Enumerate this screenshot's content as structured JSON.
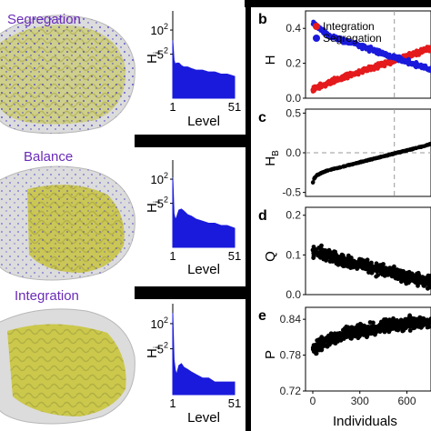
{
  "colors": {
    "blue": "#1a1adc",
    "red": "#e41a1c",
    "title": "#6a2bb8",
    "brain_fill": "#d8d8d8",
    "brain_yellow": "#c9c84a",
    "points_black": "#000000"
  },
  "rows": [
    {
      "title": "Segregation"
    },
    {
      "title": "Balance"
    },
    {
      "title": "Integration"
    }
  ],
  "chart_data": [
    {
      "id": "hist-segregation",
      "type": "area",
      "ylabel": "H",
      "ylabel_sub": "i",
      "xlabel": "Level",
      "xticks": [
        "1",
        "51"
      ],
      "yticks": [
        {
          "base": "10",
          "exp": "2"
        },
        {
          "base": "5",
          "exp": "2"
        }
      ],
      "x": [
        1,
        2,
        3,
        4,
        6,
        8,
        10,
        13,
        16,
        20,
        25,
        30,
        35,
        40,
        45,
        51
      ],
      "y": [
        55,
        18,
        14,
        15,
        15,
        13,
        12,
        12,
        11,
        10,
        10,
        9,
        9,
        8,
        8,
        7
      ]
    },
    {
      "id": "hist-balance",
      "type": "area",
      "ylabel": "H",
      "ylabel_sub": "i",
      "xlabel": "Level",
      "xticks": [
        "1",
        "51"
      ],
      "yticks": [
        {
          "base": "10",
          "exp": "2"
        },
        {
          "base": "5",
          "exp": "2"
        }
      ],
      "x": [
        1,
        2,
        3,
        4,
        6,
        8,
        10,
        13,
        16,
        20,
        25,
        30,
        35,
        40,
        45,
        51
      ],
      "y": [
        110,
        14,
        10,
        11,
        17,
        18,
        16,
        13,
        12,
        10,
        9,
        8,
        8,
        7,
        7,
        6
      ]
    },
    {
      "id": "hist-integration",
      "type": "area",
      "ylabel": "H",
      "ylabel_sub": "i",
      "xlabel": "Level",
      "xticks": [
        "1",
        "51"
      ],
      "yticks": [
        {
          "base": "10",
          "exp": "2"
        },
        {
          "base": "5",
          "exp": "2"
        }
      ],
      "x": [
        1,
        2,
        3,
        4,
        6,
        8,
        10,
        13,
        16,
        20,
        25,
        30,
        35,
        40,
        45,
        51
      ],
      "y": [
        180,
        14,
        8,
        6,
        10,
        11,
        9,
        8,
        7,
        6,
        5,
        5,
        4,
        4,
        4,
        4
      ]
    },
    {
      "id": "panel-b",
      "type": "scatter",
      "letter": "b",
      "ylabel": "H",
      "yticks": [
        "0.0",
        "0.2",
        "0.4"
      ],
      "ylim": [
        0,
        0.5
      ],
      "xlim": [
        0,
        1000
      ],
      "vline": 520,
      "series": [
        {
          "name": "Integration",
          "color": "#e41a1c",
          "x": [
            0,
            100,
            200,
            300,
            400,
            500,
            600,
            700,
            800,
            900,
            1000
          ],
          "y": [
            0.05,
            0.09,
            0.12,
            0.15,
            0.18,
            0.21,
            0.24,
            0.27,
            0.3,
            0.34,
            0.4
          ]
        },
        {
          "name": "Segregation",
          "color": "#1a1adc",
          "x": [
            0,
            100,
            200,
            300,
            400,
            500,
            600,
            700,
            800,
            900,
            1000
          ],
          "y": [
            0.43,
            0.36,
            0.33,
            0.3,
            0.27,
            0.24,
            0.21,
            0.18,
            0.15,
            0.12,
            0.07
          ]
        }
      ]
    },
    {
      "id": "panel-c",
      "type": "scatter",
      "letter": "c",
      "ylabel": "H",
      "ylabel_sub": "B",
      "yticks": [
        "-0.5",
        "0.0",
        "0.5"
      ],
      "ylim": [
        -0.55,
        0.55
      ],
      "xlim": [
        0,
        1000
      ],
      "vline": 520,
      "hline": 0,
      "series": [
        {
          "name": "",
          "color": "#000000",
          "x": [
            0,
            10,
            30,
            60,
            100,
            200,
            300,
            400,
            500,
            600,
            700,
            800
          ],
          "y": [
            -0.38,
            -0.32,
            -0.28,
            -0.25,
            -0.22,
            -0.17,
            -0.12,
            -0.07,
            -0.02,
            0.03,
            0.08,
            0.14
          ]
        }
      ]
    },
    {
      "id": "panel-d",
      "type": "scatter",
      "letter": "d",
      "ylabel": "Q",
      "yticks": [
        "0.0",
        "0.1",
        "0.2"
      ],
      "ylim": [
        0,
        0.22
      ],
      "xlim": [
        0,
        1000
      ],
      "series": [
        {
          "name": "",
          "color": "#000000",
          "x": [
            0,
            100,
            200,
            300,
            400,
            500,
            600,
            700,
            800
          ],
          "y": [
            0.11,
            0.1,
            0.085,
            0.075,
            0.065,
            0.055,
            0.045,
            0.035,
            0.03
          ]
        }
      ]
    },
    {
      "id": "panel-e",
      "type": "scatter",
      "letter": "e",
      "ylabel": "P",
      "yticks": [
        "0.72",
        "0.78",
        "0.84"
      ],
      "ylim": [
        0.72,
        0.86
      ],
      "xlim": [
        0,
        1000
      ],
      "xticks": [
        "0",
        "300",
        "600"
      ],
      "xlabel": "Individuals",
      "series": [
        {
          "name": "",
          "color": "#000000",
          "x": [
            0,
            100,
            200,
            300,
            400,
            500,
            600,
            700,
            800
          ],
          "y": [
            0.79,
            0.805,
            0.815,
            0.82,
            0.825,
            0.83,
            0.833,
            0.835,
            0.838
          ]
        }
      ]
    }
  ]
}
